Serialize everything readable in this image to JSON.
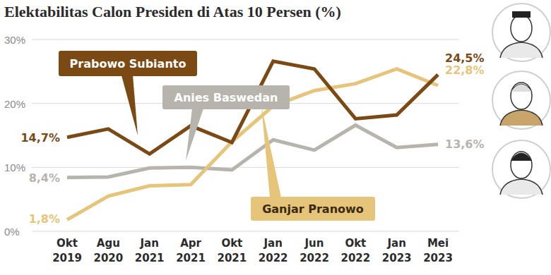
{
  "chart_data": {
    "type": "line",
    "title": "Elektabilitas Calon Presiden di Atas 10 Persen (%)",
    "categories": [
      "Okt 2019",
      "Agu 2020",
      "Jan 2021",
      "Apr 2021",
      "Okt 2021",
      "Jan 2022",
      "Jun 2022",
      "Okt 2022",
      "Jan 2023",
      "Mei 2023"
    ],
    "series": [
      {
        "name": "Prabowo Subianto",
        "color": "#7b4a14",
        "values": [
          14.7,
          16.0,
          12.1,
          16.5,
          13.9,
          26.6,
          25.4,
          17.6,
          18.2,
          24.5
        ],
        "value_labels": [
          "14,7%",
          null,
          null,
          null,
          null,
          null,
          null,
          null,
          null,
          "24,5%"
        ]
      },
      {
        "name": "Anies Baswedan",
        "color": "#b7b4ad",
        "values": [
          8.4,
          8.5,
          9.9,
          10.0,
          9.6,
          14.3,
          12.7,
          16.6,
          13.1,
          13.6
        ],
        "value_labels": [
          "8,4%",
          null,
          null,
          null,
          null,
          null,
          null,
          null,
          null,
          "13,6%"
        ]
      },
      {
        "name": "Ganjar Pranowo",
        "color": "#e6c47a",
        "values": [
          1.8,
          5.5,
          7.1,
          7.3,
          14.0,
          19.6,
          22.0,
          23.1,
          25.4,
          22.8
        ],
        "value_labels": [
          "1,8%",
          null,
          null,
          null,
          null,
          null,
          null,
          null,
          null,
          "22,8%"
        ]
      }
    ],
    "ylim": [
      0,
      30
    ],
    "yticks": [
      {
        "value": 0,
        "label": "0%"
      },
      {
        "value": 10,
        "label": "10%"
      },
      {
        "value": 20,
        "label": "20%"
      },
      {
        "value": 30,
        "label": "30%"
      }
    ],
    "grid": true
  }
}
